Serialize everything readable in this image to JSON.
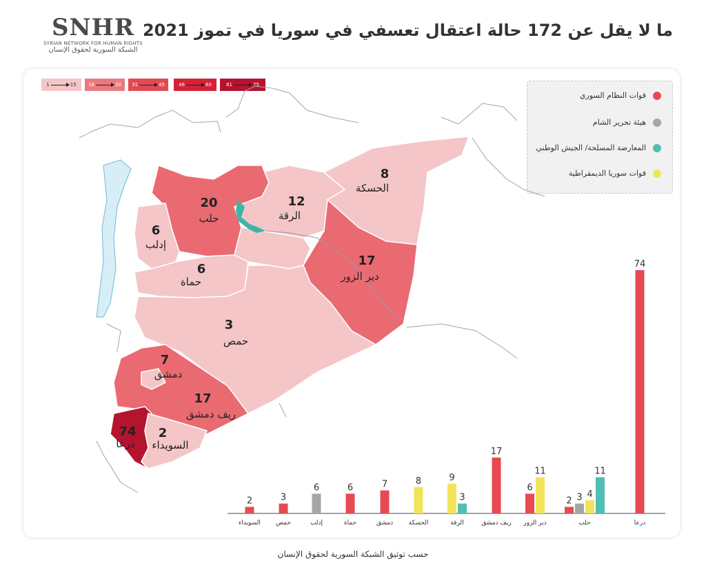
{
  "logo": {
    "main": "SNHR",
    "en": "SYRIAN NETWORK FOR HUMAN RIGHTS",
    "ar": "الشبكة السورية لحقوق الإنسان"
  },
  "title": "ما لا يقل عن 172 حالة اعتقال تعسفي في سوريا في تموز 2021",
  "footer": "حسب توثيق الشبكة السورية لحقوق الإنسان",
  "scale": [
    {
      "from": "1",
      "to": "15",
      "color": "#f4c6c8"
    },
    {
      "from": "16",
      "to": "30",
      "color": "#ea7a80"
    },
    {
      "from": "31",
      "to": "45",
      "color": "#e24a52"
    },
    {
      "from": "46",
      "to": "60",
      "color": "#d42239"
    },
    {
      "from": "61",
      "to": "75",
      "color": "#b5142e"
    }
  ],
  "legend": [
    {
      "label": "قوات النظام السوري",
      "color": "#e84a52"
    },
    {
      "label": "هيئة تحرير الشام",
      "color": "#a6a6a6"
    },
    {
      "label": "المعارضة المسلحة/ الجيش الوطني",
      "color": "#4fbfb3"
    },
    {
      "label": "قوات سوريا الديمقراطية",
      "color": "#f2e45a"
    }
  ],
  "map_labels": [
    {
      "num": "20",
      "name": "حلب"
    },
    {
      "num": "12",
      "name": "الرقة"
    },
    {
      "num": "8",
      "name": "الحسكة"
    },
    {
      "num": "6",
      "name": "إدلب"
    },
    {
      "num": "6",
      "name": "حماة"
    },
    {
      "num": "17",
      "name": "دير الزور"
    },
    {
      "num": "3",
      "name": "حمص"
    },
    {
      "num": "7",
      "name": "دمشق"
    },
    {
      "num": "17",
      "name": "ريف دمشق"
    },
    {
      "num": "74",
      "name": "درعا"
    },
    {
      "num": "2",
      "name": "السويداء"
    }
  ],
  "chart_data": {
    "type": "bar",
    "categories": [
      "درعا",
      "حلب",
      "دير الزور",
      "ريف دمشق",
      "الرقة",
      "الحسكة",
      "دمشق",
      "حماة",
      "إدلب",
      "حمص",
      "السويداء"
    ],
    "series": [
      {
        "name": "قوات النظام السوري",
        "color": "#e84a52",
        "values": [
          74,
          2,
          6,
          17,
          0,
          0,
          7,
          6,
          0,
          3,
          2
        ]
      },
      {
        "name": "هيئة تحرير الشام",
        "color": "#a6a6a6",
        "values": [
          0,
          3,
          0,
          0,
          0,
          0,
          0,
          0,
          6,
          0,
          0
        ]
      },
      {
        "name": "قوات سوريا الديمقراطية",
        "color": "#f2e45a",
        "values": [
          0,
          4,
          11,
          0,
          9,
          8,
          0,
          0,
          0,
          0,
          0
        ]
      },
      {
        "name": "المعارضة المسلحة/ الجيش الوطني",
        "color": "#4fbfb3",
        "values": [
          0,
          11,
          0,
          0,
          3,
          0,
          0,
          0,
          0,
          0,
          0
        ]
      }
    ],
    "ylim": [
      0,
      80
    ]
  }
}
